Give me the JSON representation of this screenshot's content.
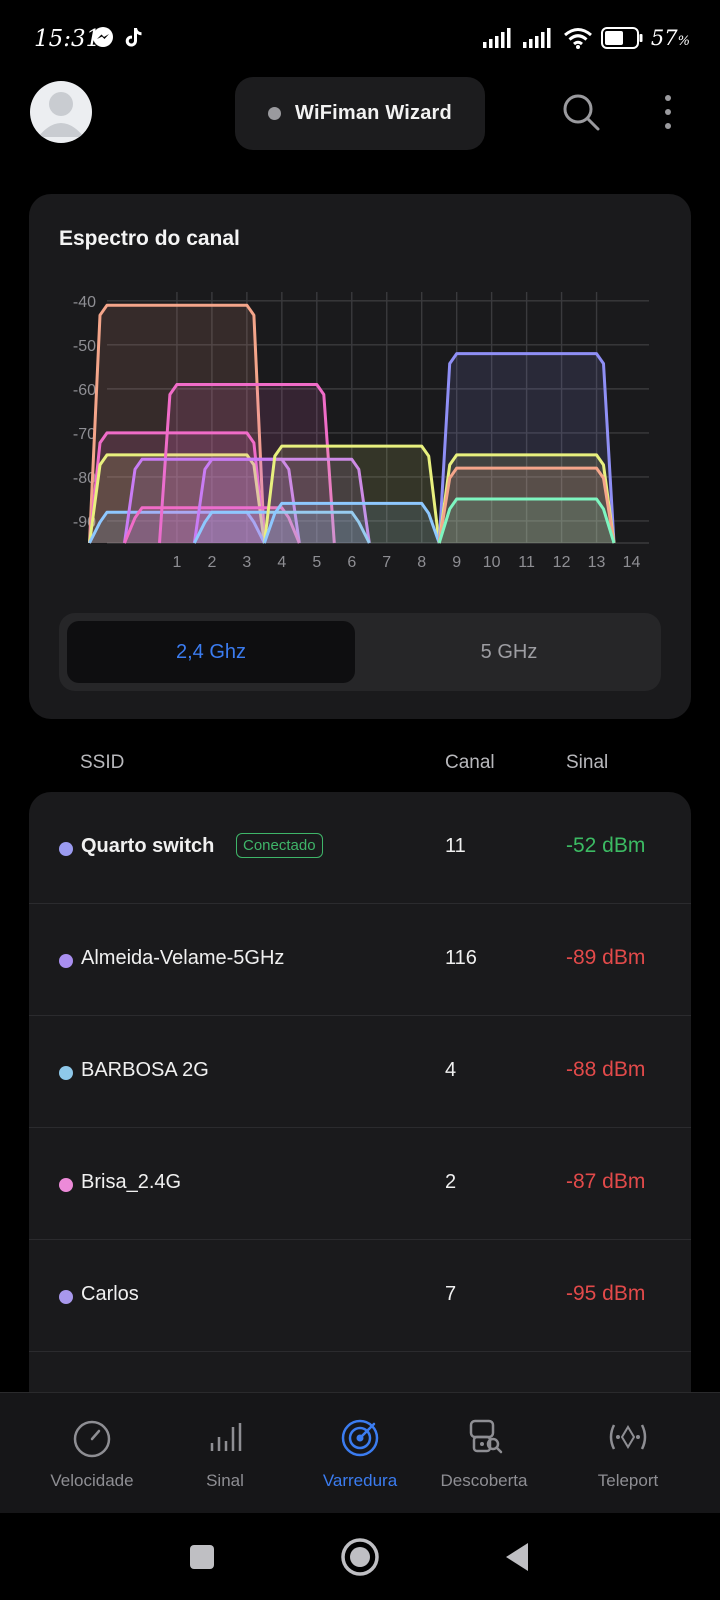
{
  "status_bar": {
    "time": "15:31",
    "left_icons": [
      "messenger-icon",
      "tiktok-icon"
    ],
    "right_icons": [
      "signal-icon",
      "signal-icon",
      "wifi-icon",
      "battery-icon"
    ],
    "battery": "57",
    "battery_unit": "%"
  },
  "header": {
    "wizard_label": "WiFiman Wizard"
  },
  "spectrum": {
    "title": "Espectro do canal",
    "bands": [
      "2,4 Ghz",
      "5 GHz"
    ],
    "selected_band": "2,4 Ghz"
  },
  "chart_data": {
    "type": "area",
    "y_ticks": [
      "-40",
      "-50",
      "-60",
      "-70",
      "-80",
      "-90"
    ],
    "x_ticks": [
      "1",
      "2",
      "3",
      "4",
      "5",
      "6",
      "7",
      "8",
      "9",
      "10",
      "11",
      "12",
      "13",
      "14"
    ],
    "ylim": [
      -95,
      -38
    ],
    "xlim": [
      -1,
      14.5
    ],
    "grid": true,
    "series": [
      {
        "center": 1,
        "level": -41,
        "color": "#f4a58a"
      },
      {
        "center": 1,
        "level": -70,
        "color": "#f06cc8"
      },
      {
        "center": 1,
        "level": -75,
        "color": "#e8f07e"
      },
      {
        "center": 1,
        "level": -88,
        "color": "#8ec8ff"
      },
      {
        "center": 3,
        "level": -59,
        "color": "#f06cc8"
      },
      {
        "center": 2,
        "level": -76,
        "color": "#c97cf5"
      },
      {
        "center": 2,
        "level": -87,
        "color": "#f06cc8"
      },
      {
        "center": 4,
        "level": -76,
        "color": "#c97cf5"
      },
      {
        "center": 4,
        "level": -88,
        "color": "#8ec8ff"
      },
      {
        "center": 6,
        "level": -73,
        "color": "#e8f07e"
      },
      {
        "center": 6,
        "level": -86,
        "color": "#8ec8ff"
      },
      {
        "center": 11,
        "level": -52,
        "color": "#8f8ff5"
      },
      {
        "center": 11,
        "level": -75,
        "color": "#e8f07e"
      },
      {
        "center": 11,
        "level": -78,
        "color": "#f4a58a"
      },
      {
        "center": 11,
        "level": -85,
        "color": "#7ef5c0"
      }
    ]
  },
  "list_header": {
    "ssid": "SSID",
    "channel": "Canal",
    "signal": "Sinal"
  },
  "networks": [
    {
      "ssid": "Quarto switch",
      "badge": "Conectado",
      "channel": "11",
      "signal": "-52 dBm",
      "dot": "#9b9bf0",
      "status": "good"
    },
    {
      "ssid": "Almeida-Velame-5GHz",
      "badge": "",
      "channel": "116",
      "signal": "-89 dBm",
      "dot": "#a98ff0",
      "status": "bad"
    },
    {
      "ssid": "BARBOSA 2G",
      "badge": "",
      "channel": "4",
      "signal": "-88 dBm",
      "dot": "#8ec8ea",
      "status": "bad"
    },
    {
      "ssid": "Brisa_2.4G",
      "badge": "",
      "channel": "2",
      "signal": "-87 dBm",
      "dot": "#ec8ad8",
      "status": "bad"
    },
    {
      "ssid": "Carlos",
      "badge": "",
      "channel": "7",
      "signal": "-95 dBm",
      "dot": "#a898ec",
      "status": "bad"
    }
  ],
  "bottom_nav": [
    {
      "label": "Velocidade",
      "icon": "speedometer-icon",
      "active": false
    },
    {
      "label": "Sinal",
      "icon": "signal-bars-icon",
      "active": false
    },
    {
      "label": "Varredura",
      "icon": "radar-icon",
      "active": true
    },
    {
      "label": "Descoberta",
      "icon": "discovery-icon",
      "active": false
    },
    {
      "label": "Teleport",
      "icon": "teleport-icon",
      "active": false
    }
  ],
  "colors": {
    "accent": "#3b7cf0",
    "good": "#3cbb63",
    "bad": "#e24a4a"
  }
}
